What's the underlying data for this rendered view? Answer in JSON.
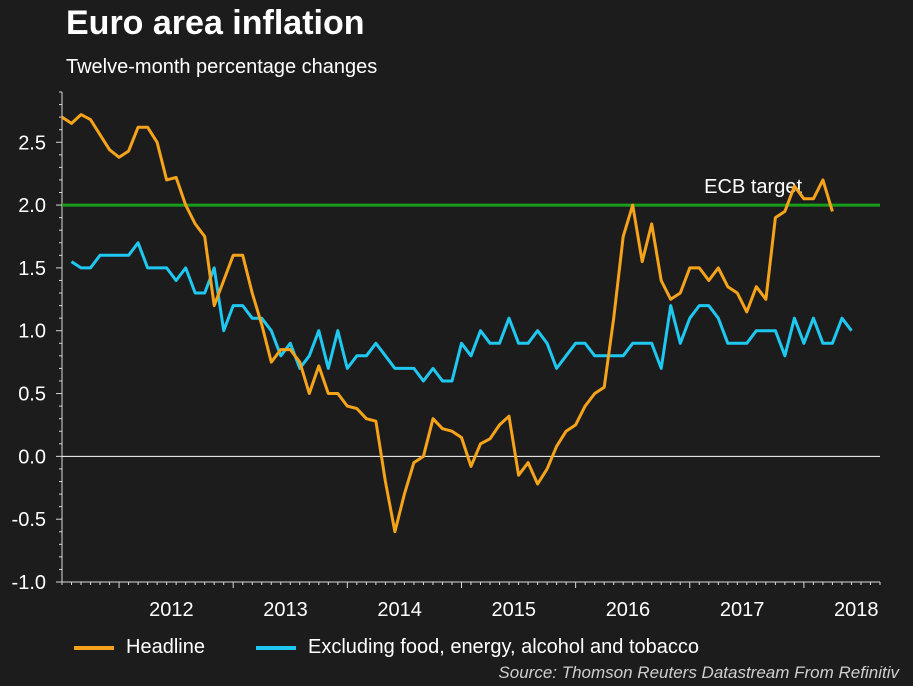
{
  "title": "Euro area inflation",
  "subtitle": "Twelve-month percentage changes",
  "source": "Source: Thomson Reuters Datastream From Refinitiv",
  "colors": {
    "background": "#1c1c1c",
    "headline": "#f5a31a",
    "core": "#1fc8f0",
    "target": "#1a9e1a",
    "zero": "#ffffff",
    "axis": "#d8d8d8"
  },
  "chart_data": {
    "type": "line",
    "ylim": [
      -1.0,
      2.9
    ],
    "yticks": [
      "-1.0",
      "-0.5",
      "0.0",
      "0.5",
      "1.0",
      "1.5",
      "2.0",
      "2.5"
    ],
    "xticks": [
      "2012",
      "2013",
      "2014",
      "2015",
      "2016",
      "2017",
      "2018"
    ],
    "x_start": "2011-07",
    "x_end": "2018-09",
    "annotation": {
      "text": "ECB target",
      "value": 2.0
    },
    "series": [
      {
        "name": "Headline",
        "color": "#f5a31a",
        "values": [
          2.7,
          2.65,
          2.72,
          2.68,
          2.56,
          2.44,
          2.38,
          2.43,
          2.62,
          2.62,
          2.5,
          2.2,
          2.22,
          2.0,
          1.85,
          1.75,
          1.2,
          1.4,
          1.6,
          1.6,
          1.3,
          1.05,
          0.75,
          0.85,
          0.85,
          0.75,
          0.5,
          0.72,
          0.5,
          0.5,
          0.4,
          0.38,
          0.3,
          0.28,
          -0.2,
          -0.6,
          -0.3,
          -0.05,
          0.0,
          0.3,
          0.22,
          0.2,
          0.15,
          -0.08,
          0.1,
          0.14,
          0.25,
          0.32,
          -0.15,
          -0.05,
          -0.22,
          -0.1,
          0.08,
          0.2,
          0.25,
          0.4,
          0.5,
          0.55,
          1.1,
          1.75,
          2.0,
          1.55,
          1.85,
          1.4,
          1.25,
          1.3,
          1.5,
          1.5,
          1.4,
          1.5,
          1.35,
          1.3,
          1.15,
          1.35,
          1.25,
          1.9,
          1.95,
          2.15,
          2.05,
          2.05,
          2.2,
          1.95
        ],
        "start": "2011-07"
      },
      {
        "name": "Excluding food, energy, alcohol and tobacco",
        "color": "#1fc8f0",
        "values": [
          1.55,
          1.5,
          1.5,
          1.6,
          1.6,
          1.6,
          1.6,
          1.7,
          1.5,
          1.5,
          1.5,
          1.4,
          1.5,
          1.3,
          1.3,
          1.5,
          1.0,
          1.2,
          1.2,
          1.1,
          1.1,
          1.0,
          0.8,
          0.9,
          0.7,
          0.8,
          1.0,
          0.7,
          1.0,
          0.7,
          0.8,
          0.8,
          0.9,
          0.8,
          0.7,
          0.7,
          0.7,
          0.6,
          0.7,
          0.6,
          0.6,
          0.9,
          0.8,
          1.0,
          0.9,
          0.9,
          1.1,
          0.9,
          0.9,
          1.0,
          0.9,
          0.7,
          0.8,
          0.9,
          0.9,
          0.8,
          0.8,
          0.8,
          0.8,
          0.9,
          0.9,
          0.9,
          0.7,
          1.2,
          0.9,
          1.1,
          1.2,
          1.2,
          1.1,
          0.9,
          0.9,
          0.9,
          1.0,
          1.0,
          1.0,
          0.8,
          1.1,
          0.9,
          1.1,
          0.9,
          0.9,
          1.1,
          1.0
        ],
        "start": "2011-08"
      }
    ]
  }
}
